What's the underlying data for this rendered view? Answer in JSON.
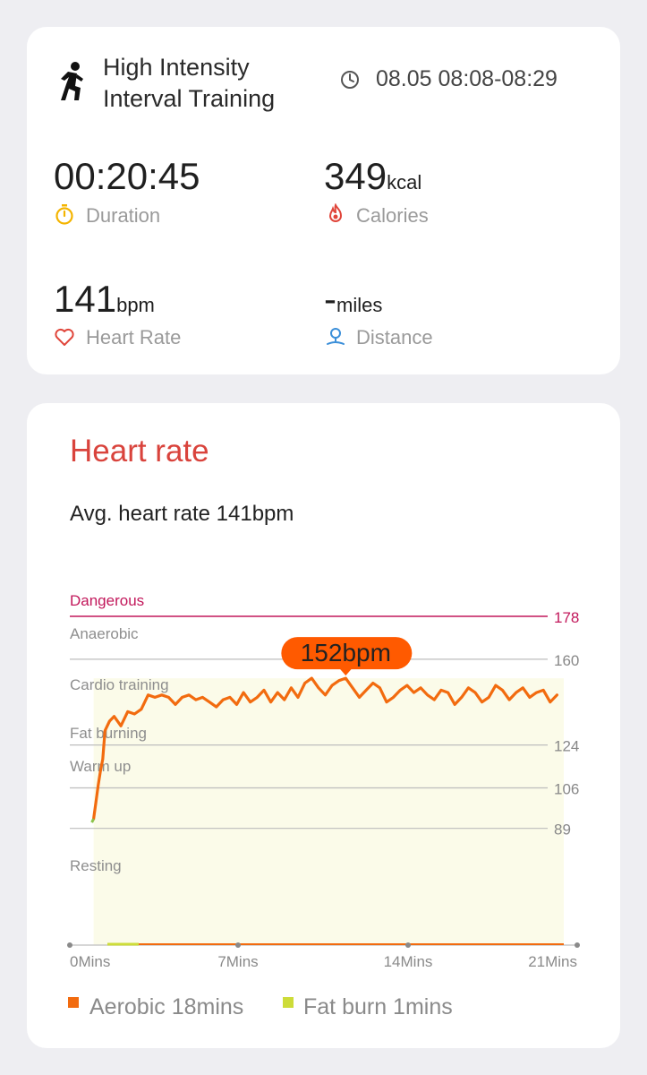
{
  "workout": {
    "title_line1": "High Intensity",
    "title_line2": "Interval Training",
    "time_range": "08.05 08:08-08:29"
  },
  "stats": {
    "duration": {
      "value": "00:20:45",
      "label": "Duration"
    },
    "calories": {
      "value": "349",
      "unit": "kcal",
      "label": "Calories"
    },
    "heart_rate": {
      "value": "141",
      "unit": "bpm",
      "label": "Heart Rate"
    },
    "distance": {
      "value": "-",
      "unit": "miles",
      "label": "Distance"
    }
  },
  "heart_rate_section": {
    "title": "Heart rate",
    "average_text": "Avg. heart rate 141bpm"
  },
  "colors": {
    "accent_red": "#d9433c",
    "dangerous": "#c2185b",
    "line_orange": "#f26b0f",
    "aerobic": "#f26b0f",
    "fat_burn": "#cddc39",
    "fill": "#fbfbe9"
  },
  "chart_data": {
    "type": "line",
    "x_ticks": [
      "0Mins",
      "7Mins",
      "14Mins",
      "21Mins"
    ],
    "xlim": [
      0,
      21
    ],
    "ylim": [
      40,
      178
    ],
    "zones": [
      {
        "name": "Dangerous",
        "threshold": 178
      },
      {
        "name": "Anaerobic",
        "threshold": 160
      },
      {
        "name": "Cardio training",
        "threshold": null
      },
      {
        "name": "Fat burning",
        "threshold": 124
      },
      {
        "name": "Warm up",
        "threshold": 106
      },
      {
        "name": "Resting",
        "threshold": 89
      }
    ],
    "peak": {
      "label": "152bpm",
      "x": 11.4,
      "y": 152
    },
    "series": [
      {
        "x": [
          0.3,
          0.4,
          0.5,
          0.6,
          0.7,
          0.8,
          1.0,
          1.2,
          1.5,
          1.8,
          2.1,
          2.4,
          2.7,
          3.0,
          3.3,
          3.6,
          3.9,
          4.2,
          4.5,
          4.8,
          5.1,
          5.4,
          5.7,
          6.0,
          6.3,
          6.6,
          6.9,
          7.2,
          7.5,
          7.8,
          8.1,
          8.4,
          8.7,
          9.0,
          9.3,
          9.6,
          9.9,
          10.2,
          10.5,
          10.8,
          11.1,
          11.4,
          11.7,
          12.0,
          12.3,
          12.6,
          12.9,
          13.2,
          13.5,
          13.8,
          14.1,
          14.4,
          14.7,
          15.0,
          15.3,
          15.6,
          15.9,
          16.2,
          16.5,
          16.8,
          17.1,
          17.4,
          17.7,
          18.0,
          18.3,
          18.6,
          18.9,
          19.2,
          19.5,
          19.8,
          20.1,
          20.4,
          20.7
        ],
        "y": [
          93,
          100,
          107,
          113,
          118,
          130,
          134,
          136,
          132,
          138,
          137,
          139,
          145,
          144,
          145,
          144,
          141,
          144,
          145,
          143,
          144,
          142,
          140,
          143,
          144,
          141,
          146,
          142,
          144,
          147,
          142,
          146,
          143,
          148,
          144,
          150,
          152,
          148,
          145,
          149,
          151,
          152,
          148,
          144,
          147,
          150,
          148,
          142,
          144,
          147,
          149,
          146,
          148,
          145,
          143,
          147,
          146,
          141,
          144,
          148,
          146,
          142,
          144,
          149,
          147,
          143,
          146,
          148,
          144,
          146,
          147,
          142,
          145
        ]
      }
    ]
  },
  "legend": [
    {
      "name": "Aerobic 18mins"
    },
    {
      "name": "Fat burn 1mins"
    }
  ]
}
